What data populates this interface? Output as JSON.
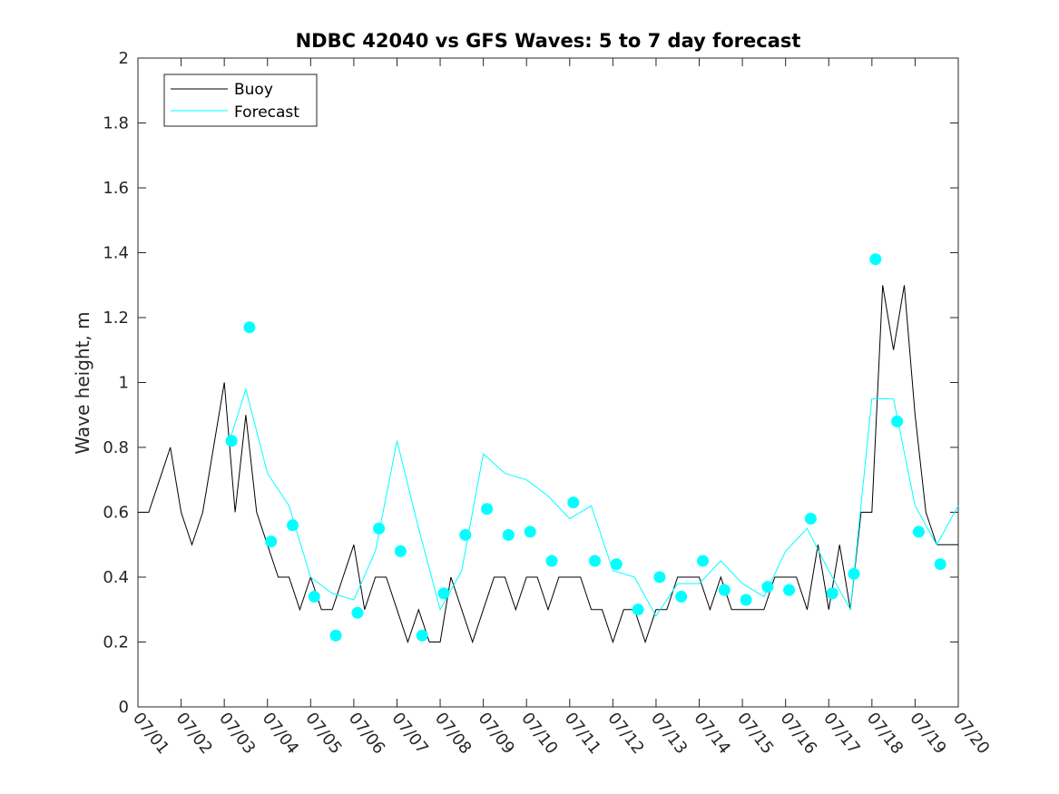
{
  "chart_data": {
    "type": "line",
    "title": "NDBC 42040 vs GFS Waves: 5 to 7 day forecast",
    "ylabel": "Wave height, m",
    "xlabel": "",
    "xlim": [
      "07/01",
      "07/20"
    ],
    "ylim": [
      0,
      2
    ],
    "grid": false,
    "legend_position": "top-left",
    "x_tick_labels": [
      "07/01",
      "07/02",
      "07/03",
      "07/04",
      "07/05",
      "07/06",
      "07/07",
      "07/08",
      "07/09",
      "07/10",
      "07/11",
      "07/12",
      "07/13",
      "07/14",
      "07/15",
      "07/16",
      "07/17",
      "07/18",
      "07/19",
      "07/20"
    ],
    "y_ticks": [
      0,
      0.2,
      0.4,
      0.6,
      0.8,
      1,
      1.2,
      1.4,
      1.6,
      1.8,
      2
    ],
    "y_tick_labels": [
      "0",
      "0.2",
      "0.4",
      "0.6",
      "0.8",
      "1",
      "1.2",
      "1.4",
      "1.6",
      "1.8",
      "2"
    ],
    "colors": {
      "buoy": "#000000",
      "forecast": "#00ffff"
    },
    "series": [
      {
        "name": "Buoy",
        "x": [
          "07/01 00:00",
          "07/01 06:00",
          "07/01 12:00",
          "07/01 18:00",
          "07/02 00:00",
          "07/02 06:00",
          "07/02 12:00",
          "07/02 18:00",
          "07/03 00:00",
          "07/03 06:00",
          "07/03 12:00",
          "07/03 18:00",
          "07/04 00:00",
          "07/04 06:00",
          "07/04 12:00",
          "07/04 18:00",
          "07/05 00:00",
          "07/05 06:00",
          "07/05 12:00",
          "07/05 18:00",
          "07/06 00:00",
          "07/06 06:00",
          "07/06 12:00",
          "07/06 18:00",
          "07/07 00:00",
          "07/07 06:00",
          "07/07 12:00",
          "07/07 18:00",
          "07/08 00:00",
          "07/08 06:00",
          "07/08 12:00",
          "07/08 18:00",
          "07/09 00:00",
          "07/09 06:00",
          "07/09 12:00",
          "07/09 18:00",
          "07/10 00:00",
          "07/10 06:00",
          "07/10 12:00",
          "07/10 18:00",
          "07/11 00:00",
          "07/11 06:00",
          "07/11 12:00",
          "07/11 18:00",
          "07/12 00:00",
          "07/12 06:00",
          "07/12 12:00",
          "07/12 18:00",
          "07/13 00:00",
          "07/13 06:00",
          "07/13 12:00",
          "07/13 18:00",
          "07/14 00:00",
          "07/14 06:00",
          "07/14 12:00",
          "07/14 18:00",
          "07/15 00:00",
          "07/15 06:00",
          "07/15 12:00",
          "07/15 18:00",
          "07/16 00:00",
          "07/16 06:00",
          "07/16 12:00",
          "07/16 18:00",
          "07/17 00:00",
          "07/17 06:00",
          "07/17 12:00",
          "07/17 18:00",
          "07/18 00:00",
          "07/18 06:00",
          "07/18 12:00",
          "07/18 18:00",
          "07/19 00:00",
          "07/19 06:00",
          "07/19 12:00",
          "07/19 18:00",
          "07/20 00:00"
        ],
        "values": [
          0.6,
          0.6,
          0.7,
          0.8,
          0.6,
          0.5,
          0.6,
          0.8,
          1.0,
          0.6,
          0.9,
          0.6,
          0.5,
          0.4,
          0.4,
          0.3,
          0.4,
          0.3,
          0.3,
          0.4,
          0.5,
          0.3,
          0.4,
          0.4,
          0.3,
          0.2,
          0.3,
          0.2,
          0.2,
          0.4,
          0.3,
          0.2,
          0.3,
          0.4,
          0.4,
          0.3,
          0.4,
          0.4,
          0.3,
          0.4,
          0.4,
          0.4,
          0.3,
          0.3,
          0.2,
          0.3,
          0.3,
          0.2,
          0.3,
          0.3,
          0.4,
          0.4,
          0.4,
          0.3,
          0.4,
          0.3,
          0.3,
          0.3,
          0.3,
          0.4,
          0.4,
          0.4,
          0.3,
          0.5,
          0.3,
          0.5,
          0.3,
          0.6,
          0.6,
          1.3,
          1.1,
          1.3,
          0.9,
          0.6,
          0.5,
          0.5,
          0.5
        ]
      },
      {
        "name": "Forecast",
        "x": [
          "07/03 03:00",
          "07/03 12:00",
          "07/04 00:00",
          "07/04 12:00",
          "07/05 00:00",
          "07/05 12:00",
          "07/06 00:00",
          "07/06 12:00",
          "07/07 00:00",
          "07/07 12:00",
          "07/08 00:00",
          "07/08 12:00",
          "07/09 00:00",
          "07/09 12:00",
          "07/10 00:00",
          "07/10 12:00",
          "07/11 00:00",
          "07/11 12:00",
          "07/12 00:00",
          "07/12 12:00",
          "07/13 00:00",
          "07/13 12:00",
          "07/14 00:00",
          "07/14 12:00",
          "07/15 00:00",
          "07/15 12:00",
          "07/16 00:00",
          "07/16 12:00",
          "07/17 00:00",
          "07/17 12:00",
          "07/18 00:00",
          "07/18 12:00",
          "07/19 00:00",
          "07/19 12:00",
          "07/20 00:00"
        ],
        "values": [
          0.82,
          0.98,
          0.72,
          0.62,
          0.4,
          0.35,
          0.33,
          0.48,
          0.82,
          0.55,
          0.3,
          0.42,
          0.78,
          0.72,
          0.7,
          0.65,
          0.58,
          0.62,
          0.42,
          0.4,
          0.28,
          0.38,
          0.38,
          0.45,
          0.38,
          0.34,
          0.48,
          0.55,
          0.42,
          0.3,
          0.95,
          0.95,
          0.62,
          0.5,
          0.62
        ]
      }
    ],
    "markers": {
      "series": "Forecast",
      "x": [
        "07/03 04:00",
        "07/03 14:00",
        "07/04 02:00",
        "07/04 14:00",
        "07/05 02:00",
        "07/05 14:00",
        "07/06 02:00",
        "07/06 14:00",
        "07/07 02:00",
        "07/07 14:00",
        "07/08 02:00",
        "07/08 14:00",
        "07/09 02:00",
        "07/09 14:00",
        "07/10 02:00",
        "07/10 14:00",
        "07/11 02:00",
        "07/11 14:00",
        "07/12 02:00",
        "07/12 14:00",
        "07/13 02:00",
        "07/13 14:00",
        "07/14 02:00",
        "07/14 14:00",
        "07/15 02:00",
        "07/15 14:00",
        "07/16 02:00",
        "07/16 14:00",
        "07/17 02:00",
        "07/17 14:00",
        "07/18 02:00",
        "07/18 14:00",
        "07/19 02:00",
        "07/19 14:00"
      ],
      "values": [
        0.82,
        1.17,
        0.51,
        0.56,
        0.34,
        0.22,
        0.29,
        0.55,
        0.48,
        0.22,
        0.35,
        0.53,
        0.61,
        0.53,
        0.54,
        0.45,
        0.63,
        0.45,
        0.44,
        0.3,
        0.4,
        0.34,
        0.45,
        0.36,
        0.33,
        0.37,
        0.36,
        0.58,
        0.35,
        0.41,
        1.38,
        0.88,
        0.54,
        0.44
      ]
    }
  }
}
